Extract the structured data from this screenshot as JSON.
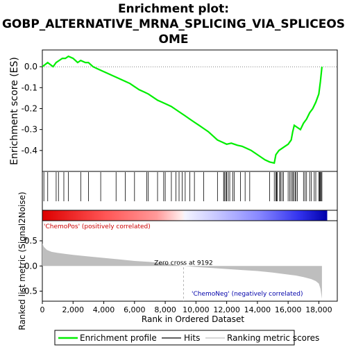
{
  "title_lines": [
    "Enrichment plot:",
    "GOBP_ALTERNATIVE_MRNA_SPLICING_VIA_SPLICEOS",
    "OME"
  ],
  "colors": {
    "es_line": "#00ee00",
    "hits": "#000000",
    "ranking_fill": "#bebebe",
    "zero_cross_line": "#a0a0a0",
    "pos_label": "#cc0000",
    "neg_label": "#0000aa"
  },
  "chart_data": {
    "type": "line",
    "title": "Enrichment plot: GOBP_ALTERNATIVE_MRNA_SPLICING_VIA_SPLICEOSOME",
    "xlabel": "Rank in Ordered Dataset",
    "xlim": [
      0,
      19200
    ],
    "x_ticks": [
      0,
      2000,
      4000,
      6000,
      8000,
      10000,
      12000,
      14000,
      16000,
      18000
    ],
    "x_tick_labels": [
      "0",
      "2,000",
      "4,000",
      "6,000",
      "8,000",
      "10,000",
      "12,000",
      "14,000",
      "16,000",
      "18,000"
    ],
    "enrichment_panel": {
      "ylabel": "Enrichment score (ES)",
      "ylim": [
        -0.5,
        0.08
      ],
      "y_ticks": [
        0.0,
        -0.1,
        -0.2,
        -0.3,
        -0.4
      ],
      "y_tick_labels": [
        "0.0",
        "-0.1",
        "-0.2",
        "-0.3",
        "-0.4"
      ],
      "series_name": "Enrichment profile",
      "x": [
        0,
        350,
        700,
        900,
        1100,
        1300,
        1500,
        1700,
        2000,
        2300,
        2500,
        2800,
        3000,
        3300,
        3600,
        3900,
        4200,
        4500,
        4800,
        5100,
        5400,
        5700,
        6000,
        6300,
        6600,
        6900,
        7200,
        7500,
        7800,
        8100,
        8400,
        8700,
        9000,
        9300,
        9600,
        9900,
        10200,
        10500,
        10800,
        11100,
        11400,
        11700,
        12000,
        12300,
        12500,
        12700,
        13000,
        13300,
        13600,
        13900,
        14200,
        14500,
        14800,
        15100,
        15200,
        15400,
        15600,
        15800,
        16000,
        16200,
        16300,
        16400,
        16600,
        16800,
        17000,
        17200,
        17400,
        17600,
        17800,
        18000,
        18100,
        18200
      ],
      "y": [
        0.0,
        0.02,
        0.0,
        0.02,
        0.03,
        0.04,
        0.04,
        0.05,
        0.04,
        0.02,
        0.03,
        0.02,
        0.02,
        0.0,
        -0.01,
        -0.02,
        -0.03,
        -0.04,
        -0.05,
        -0.06,
        -0.07,
        -0.08,
        -0.095,
        -0.11,
        -0.12,
        -0.13,
        -0.145,
        -0.16,
        -0.17,
        -0.18,
        -0.19,
        -0.205,
        -0.22,
        -0.235,
        -0.25,
        -0.265,
        -0.28,
        -0.295,
        -0.31,
        -0.33,
        -0.35,
        -0.36,
        -0.37,
        -0.365,
        -0.37,
        -0.375,
        -0.38,
        -0.39,
        -0.4,
        -0.415,
        -0.43,
        -0.445,
        -0.455,
        -0.46,
        -0.42,
        -0.4,
        -0.39,
        -0.38,
        -0.37,
        -0.35,
        -0.31,
        -0.28,
        -0.29,
        -0.3,
        -0.27,
        -0.25,
        -0.22,
        -0.2,
        -0.17,
        -0.13,
        -0.07,
        0.0
      ]
    },
    "hits": [
      100,
      350,
      900,
      1050,
      1400,
      1700,
      2500,
      3000,
      3800,
      4800,
      5400,
      6000,
      6800,
      6900,
      7500,
      7900,
      8000,
      8400,
      8700,
      8900,
      9100,
      9300,
      9600,
      9900,
      10500,
      11400,
      11800,
      11850,
      11950,
      12000,
      12100,
      12200,
      12400,
      12500,
      12900,
      13200,
      13500,
      14800,
      15100,
      15200,
      15250,
      15300,
      15450,
      15500,
      15600,
      15700,
      16000,
      16100,
      16200,
      16300,
      16350,
      16450,
      16500,
      16600,
      17000,
      17100,
      17200,
      17400,
      17500,
      17700,
      17800,
      18000,
      18050,
      18100,
      18150,
      18200
    ],
    "ranking_panel": {
      "ylabel": "Ranked list metric (Signal2Noise)",
      "ylim": [
        -0.7,
        0.9
      ],
      "y_ticks": [
        0.5,
        0.0,
        -0.5
      ],
      "y_tick_labels": [
        "0.5",
        "0.0",
        "-0.5"
      ],
      "x": [
        0,
        100,
        300,
        600,
        1000,
        1500,
        2000,
        3000,
        4000,
        5000,
        6000,
        7000,
        8000,
        9192,
        10000,
        11000,
        12000,
        13000,
        14000,
        15000,
        16000,
        16500,
        17000,
        17500,
        17800,
        18000,
        18100,
        18200
      ],
      "y": [
        0.45,
        0.38,
        0.32,
        0.28,
        0.26,
        0.24,
        0.22,
        0.19,
        0.16,
        0.13,
        0.1,
        0.08,
        0.05,
        0.0,
        -0.02,
        -0.04,
        -0.06,
        -0.08,
        -0.1,
        -0.13,
        -0.17,
        -0.19,
        -0.22,
        -0.26,
        -0.3,
        -0.35,
        -0.45,
        -0.65
      ]
    },
    "zero_cross": 9192,
    "zero_cross_label": "Zero cross at 9192",
    "pos_label": "'ChemoPos' (positively correlated)",
    "neg_label": "'ChemoNeg' (negatively correlated)",
    "legend": {
      "position": "bottom",
      "items": [
        "Enrichment profile",
        "Hits",
        "Ranking metric scores"
      ]
    }
  }
}
